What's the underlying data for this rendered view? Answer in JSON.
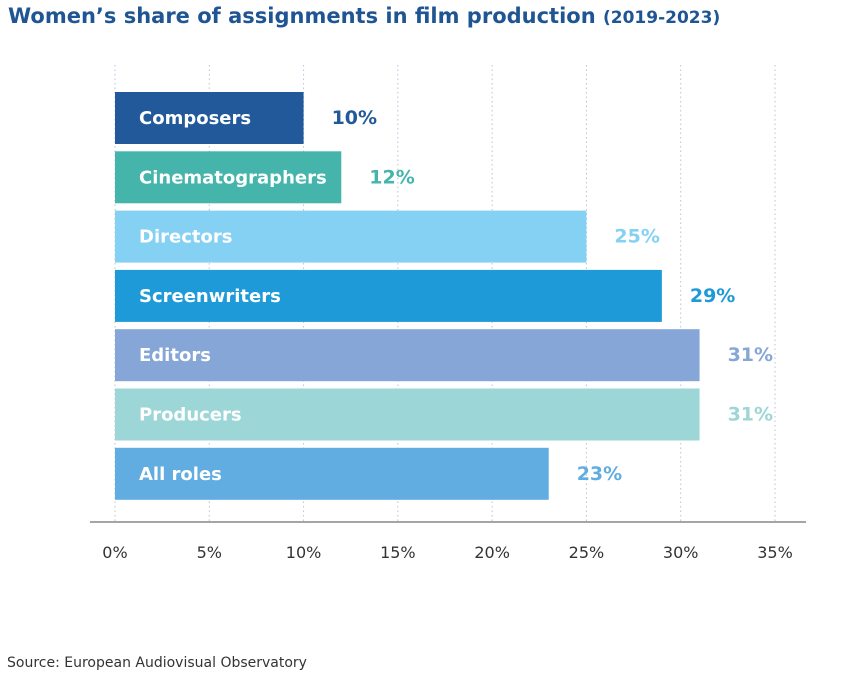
{
  "title": {
    "main": "Women’s share of assignments in film production",
    "sub": "(2019-2023)"
  },
  "source": "Source: European Audiovisual Observatory",
  "chart_data": {
    "type": "bar",
    "orientation": "horizontal",
    "categories": [
      "Composers",
      "Cinematographers",
      "Directors",
      "Screenwriters",
      "Editors",
      "Producers",
      "All roles"
    ],
    "values": [
      10,
      12,
      25,
      29,
      31,
      31,
      23
    ],
    "value_labels": [
      "10%",
      "12%",
      "25%",
      "29%",
      "31%",
      "31%",
      "23%"
    ],
    "colors": [
      "#21599b",
      "#45b5ac",
      "#84d1f3",
      "#1e9ad8",
      "#85a6d6",
      "#9dd6d6",
      "#61ace0"
    ],
    "xlim": [
      0,
      35
    ],
    "x_ticks": [
      0,
      5,
      10,
      15,
      20,
      25,
      30,
      35
    ],
    "x_tick_labels": [
      "0%",
      "5%",
      "10%",
      "15%",
      "20%",
      "25%",
      "30%",
      "35%"
    ],
    "grid": "vertical dotted",
    "legend": "none"
  }
}
